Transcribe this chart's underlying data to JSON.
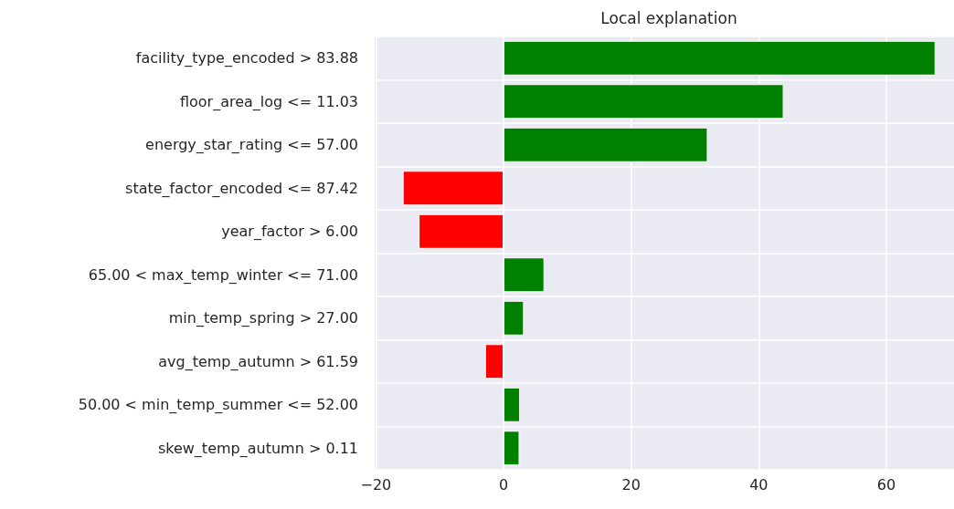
{
  "chart_data": {
    "type": "bar",
    "orientation": "horizontal",
    "title": "Local explanation",
    "categories": [
      "facility_type_encoded > 83.88",
      "floor_area_log <= 11.03",
      "energy_star_rating <= 57.00",
      "state_factor_encoded <= 87.42",
      "year_factor > 6.00",
      "65.00 < max_temp_winter <= 71.00",
      "min_temp_spring > 27.00",
      "avg_temp_autumn > 61.59",
      "50.00 < min_temp_summer <= 52.00",
      "skew_temp_autumn > 0.11"
    ],
    "values": [
      67.7,
      43.9,
      32.0,
      -15.8,
      -13.3,
      6.4,
      3.2,
      -2.9,
      2.6,
      2.5
    ],
    "colors": [
      "#008000",
      "#008000",
      "#008000",
      "#ff0000",
      "#ff0000",
      "#008000",
      "#008000",
      "#ff0000",
      "#008000",
      "#008000"
    ],
    "xlim": [
      -20.2,
      70.6
    ],
    "xticks": [
      -20,
      0,
      20,
      40,
      60
    ],
    "grid": true
  }
}
